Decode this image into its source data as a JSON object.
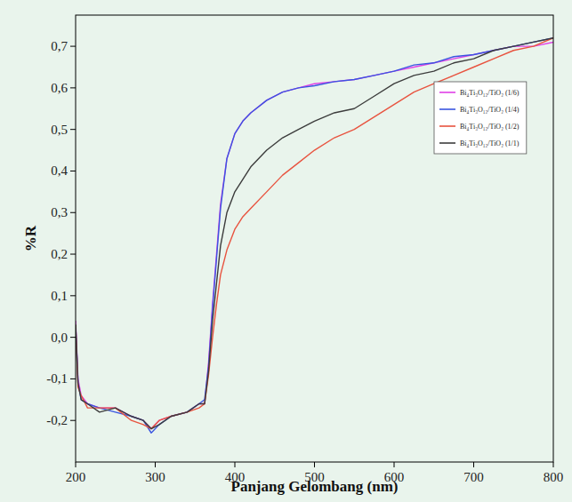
{
  "chart_data": {
    "type": "line",
    "x_label": "Panjang Gelombang (nm)",
    "y_label": "%R",
    "x": [
      200,
      203,
      207,
      215,
      230,
      250,
      270,
      285,
      295,
      305,
      320,
      340,
      355,
      362,
      367,
      372,
      377,
      382,
      390,
      400,
      410,
      420,
      440,
      460,
      480,
      500,
      525,
      550,
      575,
      600,
      625,
      650,
      675,
      700,
      725,
      750,
      775,
      800
    ],
    "series": [
      {
        "name": "Bi₄Ti₃O₁₂/TiO₂ (1/6)",
        "color": "#e040e6",
        "values": [
          0.04,
          -0.1,
          -0.14,
          -0.16,
          -0.17,
          -0.17,
          -0.19,
          -0.2,
          -0.22,
          -0.2,
          -0.19,
          -0.18,
          -0.16,
          -0.16,
          -0.06,
          0.08,
          0.2,
          0.32,
          0.43,
          0.49,
          0.52,
          0.54,
          0.57,
          0.59,
          0.6,
          0.61,
          0.615,
          0.62,
          0.63,
          0.64,
          0.65,
          0.66,
          0.67,
          0.68,
          0.69,
          0.7,
          0.7,
          0.71
        ]
      },
      {
        "name": "Bi₄Ti₃O₁₂/TiO₂ (1/4)",
        "color": "#3a55e0",
        "values": [
          0.03,
          -0.11,
          -0.15,
          -0.16,
          -0.17,
          -0.18,
          -0.19,
          -0.2,
          -0.23,
          -0.21,
          -0.19,
          -0.18,
          -0.16,
          -0.15,
          -0.07,
          0.07,
          0.19,
          0.31,
          0.43,
          0.49,
          0.52,
          0.54,
          0.57,
          0.59,
          0.6,
          0.605,
          0.615,
          0.62,
          0.63,
          0.64,
          0.655,
          0.66,
          0.675,
          0.68,
          0.69,
          0.7,
          0.71,
          0.72
        ]
      },
      {
        "name": "Bi₄Ti₃O₁₂/TiO₂ (1/2)",
        "color": "#e8533f",
        "values": [
          0.03,
          -0.12,
          -0.14,
          -0.17,
          -0.17,
          -0.17,
          -0.2,
          -0.21,
          -0.22,
          -0.2,
          -0.19,
          -0.18,
          -0.17,
          -0.16,
          -0.09,
          0.0,
          0.08,
          0.15,
          0.21,
          0.26,
          0.29,
          0.31,
          0.35,
          0.39,
          0.42,
          0.45,
          0.48,
          0.5,
          0.53,
          0.56,
          0.59,
          0.61,
          0.63,
          0.65,
          0.67,
          0.69,
          0.7,
          0.72
        ]
      },
      {
        "name": "Bi₄Ti₃O₁₂/TiO₂ (1/1)",
        "color": "#3c3c3c",
        "values": [
          0.03,
          -0.11,
          -0.15,
          -0.16,
          -0.18,
          -0.17,
          -0.19,
          -0.2,
          -0.22,
          -0.21,
          -0.19,
          -0.18,
          -0.16,
          -0.16,
          -0.08,
          0.04,
          0.13,
          0.22,
          0.3,
          0.35,
          0.38,
          0.41,
          0.45,
          0.48,
          0.5,
          0.52,
          0.54,
          0.55,
          0.58,
          0.61,
          0.63,
          0.64,
          0.66,
          0.67,
          0.69,
          0.7,
          0.71,
          0.72
        ]
      }
    ],
    "xlim": [
      200,
      800
    ],
    "xticks": [
      200,
      300,
      400,
      500,
      600,
      700,
      800
    ],
    "ylim": [
      -0.3,
      0.775
    ],
    "yticks": [
      {
        "value": -0.2,
        "label": "-0,2"
      },
      {
        "value": -0.1,
        "label": "-0,1"
      },
      {
        "value": 0,
        "label": "0,0"
      },
      {
        "value": 0.1,
        "label": "0,1"
      },
      {
        "value": 0.2,
        "label": "0,2"
      },
      {
        "value": 0.3,
        "label": "0,3"
      },
      {
        "value": 0.4,
        "label": "0,4"
      },
      {
        "value": 0.5,
        "label": "0,5"
      },
      {
        "value": 0.6,
        "label": "0,6"
      },
      {
        "value": 0.7,
        "label": "0,7"
      }
    ],
    "grid": false,
    "legend": "upper-right"
  }
}
